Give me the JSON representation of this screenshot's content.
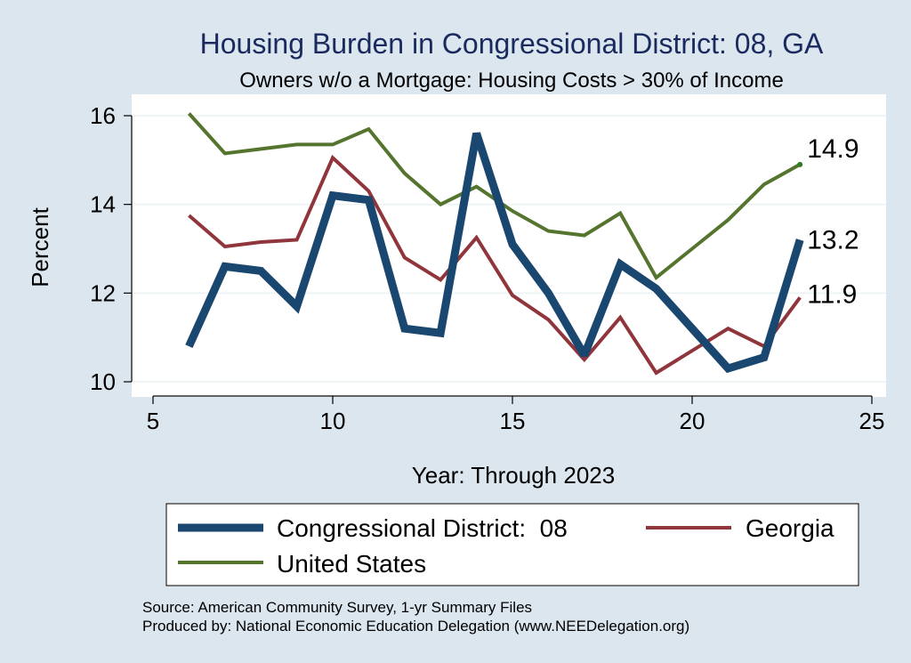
{
  "chart_data": {
    "type": "line",
    "title": "Housing Burden in Congressional District:  08, GA",
    "subtitle": "Owners w/o a Mortgage: Housing Costs > 30% of Income",
    "xlabel": "Year: Through 2023",
    "ylabel": "Percent",
    "xlim": [
      5,
      25
    ],
    "ylim": [
      10,
      16
    ],
    "xticks": [
      5,
      10,
      15,
      20,
      25
    ],
    "yticks": [
      10,
      12,
      14,
      16
    ],
    "grid": true,
    "legend_position": "bottom",
    "colors": {
      "background": "#dce6ef",
      "plot_background": "#ffffff",
      "district": "#1a476f",
      "state": "#90353b",
      "us": "#55752f",
      "title": "#1a2a5e"
    },
    "series": [
      {
        "name": "Congressional District:  08",
        "x": [
          6,
          7,
          8,
          9,
          10,
          11,
          12,
          13,
          14,
          15,
          16,
          17,
          18,
          19,
          20,
          21,
          22,
          23
        ],
        "values": [
          10.8,
          12.6,
          12.5,
          11.7,
          14.2,
          14.1,
          11.2,
          11.1,
          15.6,
          13.1,
          12.0,
          10.6,
          12.65,
          12.1,
          11.2,
          10.3,
          10.55,
          13.2
        ],
        "end_label": "13.2"
      },
      {
        "name": "Georgia",
        "x": [
          6,
          7,
          8,
          9,
          10,
          11,
          12,
          13,
          14,
          15,
          16,
          17,
          18,
          19,
          20,
          21,
          22,
          23
        ],
        "values": [
          13.75,
          13.05,
          13.15,
          13.2,
          15.05,
          14.3,
          12.8,
          12.3,
          13.25,
          11.95,
          11.4,
          10.5,
          11.45,
          10.2,
          10.7,
          11.2,
          10.8,
          11.9
        ],
        "end_label": "11.9"
      },
      {
        "name": "United States",
        "x": [
          6,
          7,
          8,
          9,
          10,
          11,
          12,
          13,
          14,
          15,
          16,
          17,
          18,
          19,
          20,
          21,
          22,
          23
        ],
        "values": [
          16.05,
          15.15,
          15.25,
          15.35,
          15.35,
          15.7,
          14.7,
          14.0,
          14.4,
          13.85,
          13.4,
          13.3,
          13.8,
          12.35,
          13.0,
          13.65,
          14.45,
          14.9
        ],
        "end_label": "14.9"
      }
    ],
    "source": "Source: American Community Survey, 1-yr Summary Files",
    "producer": "Produced by: National Economic Education Delegation (www.NEEDelegation.org)"
  }
}
